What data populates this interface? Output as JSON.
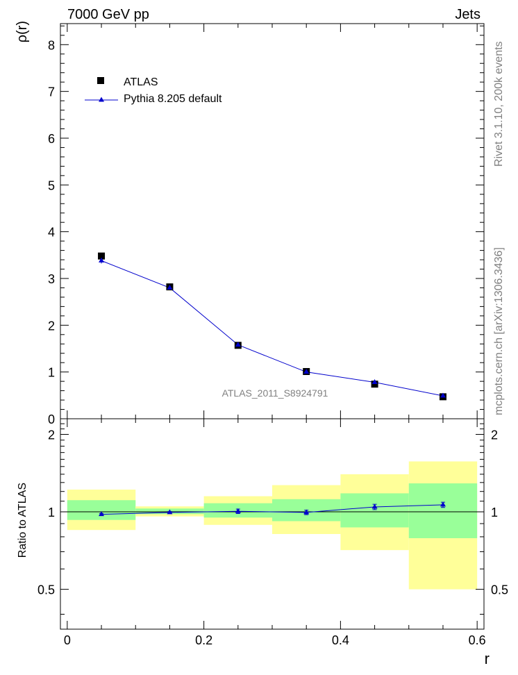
{
  "header": {
    "left": "7000 GeV pp",
    "right": "Jets"
  },
  "side_labels": {
    "rivet": "Rivet 3.1.10,  200k events",
    "mcplots": "mcplots.cern.ch [arXiv:1306.3436]"
  },
  "watermark": "ATLAS_2011_S8924791",
  "colors": {
    "mc": "#0000cc",
    "data": "#000000",
    "band_inner": "#99ff99",
    "band_outer": "#ffff99"
  },
  "chart_data": [
    {
      "type": "scatter",
      "panel": "main",
      "ylabel": "ρ(r)",
      "xlim": [
        -0.01,
        0.61
      ],
      "ylim": [
        0,
        8.45
      ],
      "yticks": [
        0,
        1,
        2,
        3,
        4,
        5,
        6,
        7,
        8
      ],
      "ytick_labels": [
        "0",
        "1",
        "2",
        "3",
        "4",
        "5",
        "6",
        "7",
        "8"
      ],
      "legend": {
        "position": "top-left",
        "entries": [
          "ATLAS",
          "Pythia 8.205 default"
        ]
      },
      "series": [
        {
          "name": "ATLAS",
          "marker": "square",
          "x": [
            0.05,
            0.15,
            0.25,
            0.35,
            0.45,
            0.55
          ],
          "y": [
            3.48,
            2.82,
            1.57,
            1.01,
            0.74,
            0.47
          ]
        },
        {
          "name": "Pythia 8.205 default",
          "marker": "triangle",
          "line": true,
          "x": [
            0.05,
            0.15,
            0.25,
            0.35,
            0.45,
            0.55
          ],
          "y": [
            3.38,
            2.8,
            1.58,
            1.0,
            0.78,
            0.49
          ],
          "yerr": [
            0.06,
            0.03,
            0.02,
            0.02,
            0.02,
            0.02
          ]
        }
      ]
    },
    {
      "type": "scatter",
      "panel": "ratio",
      "xlabel": "r",
      "ylabel": "Ratio to ATLAS",
      "xlim": [
        -0.01,
        0.61
      ],
      "ylim": [
        0.35,
        2.3
      ],
      "xticks": [
        0,
        0.2,
        0.4,
        0.6
      ],
      "xtick_labels": [
        "0",
        "0.2",
        "0.4",
        "0.6"
      ],
      "yticks": [
        0.5,
        1,
        2
      ],
      "ytick_labels": [
        "0.5",
        "1",
        "2"
      ],
      "bins": [
        [
          0.0,
          0.1
        ],
        [
          0.1,
          0.2
        ],
        [
          0.2,
          0.3
        ],
        [
          0.3,
          0.4
        ],
        [
          0.4,
          0.5
        ],
        [
          0.5,
          0.6
        ]
      ],
      "band_inner": [
        [
          0.93,
          1.11
        ],
        [
          0.98,
          1.03
        ],
        [
          0.95,
          1.08
        ],
        [
          0.92,
          1.12
        ],
        [
          0.87,
          1.18
        ],
        [
          0.79,
          1.29
        ]
      ],
      "band_outer": [
        [
          0.85,
          1.22
        ],
        [
          0.96,
          1.05
        ],
        [
          0.89,
          1.15
        ],
        [
          0.82,
          1.27
        ],
        [
          0.71,
          1.4
        ],
        [
          0.5,
          1.57
        ]
      ],
      "series": [
        {
          "name": "Pythia 8.205 default",
          "marker": "triangle",
          "line": true,
          "x": [
            0.05,
            0.15,
            0.25,
            0.35,
            0.45,
            0.55
          ],
          "y": [
            0.978,
            0.995,
            1.005,
            0.995,
            1.045,
            1.065
          ],
          "yerr": [
            0.008,
            0.008,
            0.02,
            0.02,
            0.025,
            0.025
          ]
        }
      ]
    }
  ]
}
